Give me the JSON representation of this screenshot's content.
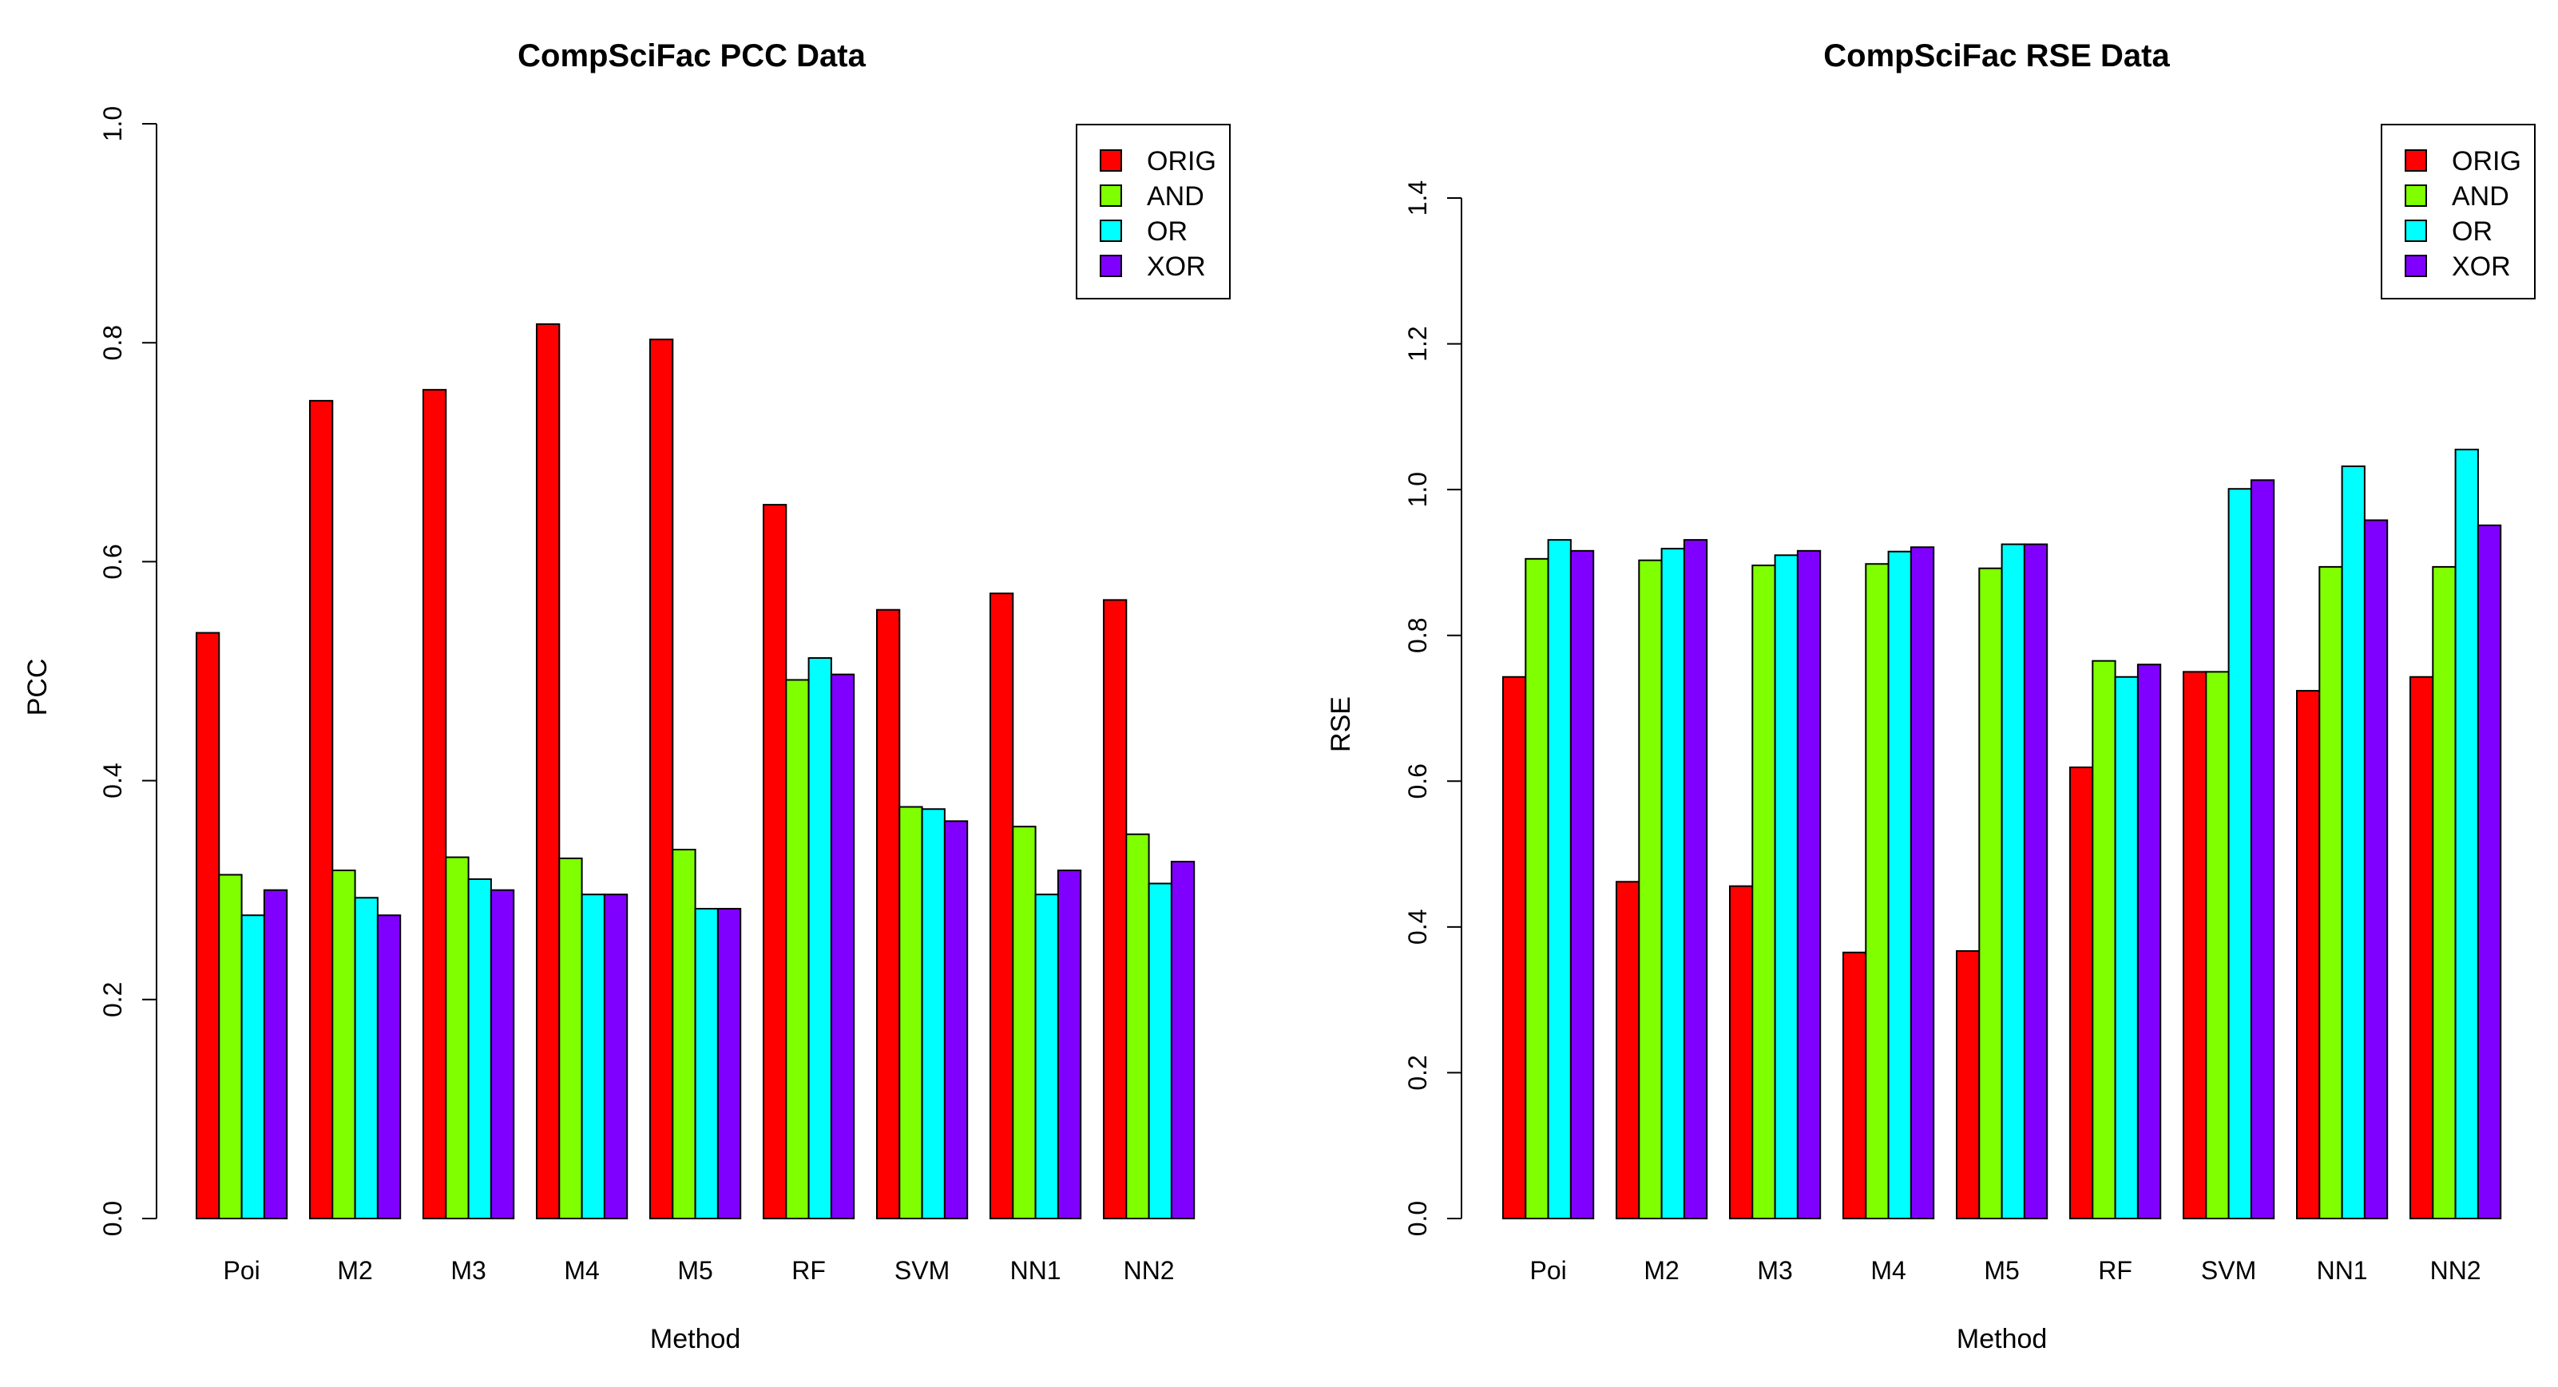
{
  "chart_data": [
    {
      "type": "bar",
      "title": "CompSciFac PCC Data",
      "xlabel": "Method",
      "ylabel": "PCC",
      "ylim": [
        0,
        1.0
      ],
      "yticks": [
        "0.0",
        "0.2",
        "0.4",
        "0.6",
        "0.8",
        "1.0"
      ],
      "categories": [
        "Poi",
        "M2",
        "M3",
        "M4",
        "M5",
        "RF",
        "SVM",
        "NN1",
        "NN2"
      ],
      "legend_position": "top-right",
      "series": [
        {
          "name": "ORIG",
          "color": "#FF0000",
          "values": [
            0.535,
            0.747,
            0.757,
            0.817,
            0.803,
            0.652,
            0.556,
            0.571,
            0.565
          ]
        },
        {
          "name": "AND",
          "color": "#80FF00",
          "values": [
            0.314,
            0.318,
            0.33,
            0.329,
            0.337,
            0.492,
            0.376,
            0.358,
            0.351
          ]
        },
        {
          "name": "OR",
          "color": "#00FFFF",
          "values": [
            0.277,
            0.293,
            0.31,
            0.296,
            0.283,
            0.512,
            0.374,
            0.296,
            0.306
          ]
        },
        {
          "name": "XOR",
          "color": "#8000FF",
          "values": [
            0.3,
            0.277,
            0.3,
            0.296,
            0.283,
            0.497,
            0.363,
            0.318,
            0.326
          ]
        }
      ]
    },
    {
      "type": "bar",
      "title": "CompSciFac RSE Data",
      "xlabel": "Method",
      "ylabel": "RSE",
      "ylim": [
        0,
        1.4
      ],
      "yticks": [
        "0.0",
        "0.2",
        "0.4",
        "0.6",
        "0.8",
        "1.0",
        "1.2",
        "1.4"
      ],
      "categories": [
        "Poi",
        "M2",
        "M3",
        "M4",
        "M5",
        "RF",
        "SVM",
        "NN1",
        "NN2"
      ],
      "legend_position": "top-right",
      "series": [
        {
          "name": "ORIG",
          "color": "#FF0000",
          "values": [
            0.743,
            0.462,
            0.456,
            0.365,
            0.367,
            0.619,
            0.75,
            0.724,
            0.743
          ]
        },
        {
          "name": "AND",
          "color": "#80FF00",
          "values": [
            0.905,
            0.903,
            0.896,
            0.898,
            0.892,
            0.765,
            0.75,
            0.894,
            0.894
          ]
        },
        {
          "name": "OR",
          "color": "#00FFFF",
          "values": [
            0.931,
            0.919,
            0.91,
            0.915,
            0.925,
            0.743,
            1.001,
            1.032,
            1.055
          ]
        },
        {
          "name": "XOR",
          "color": "#8000FF",
          "values": [
            0.916,
            0.931,
            0.916,
            0.921,
            0.925,
            0.76,
            1.013,
            0.958,
            0.951
          ]
        }
      ]
    }
  ]
}
